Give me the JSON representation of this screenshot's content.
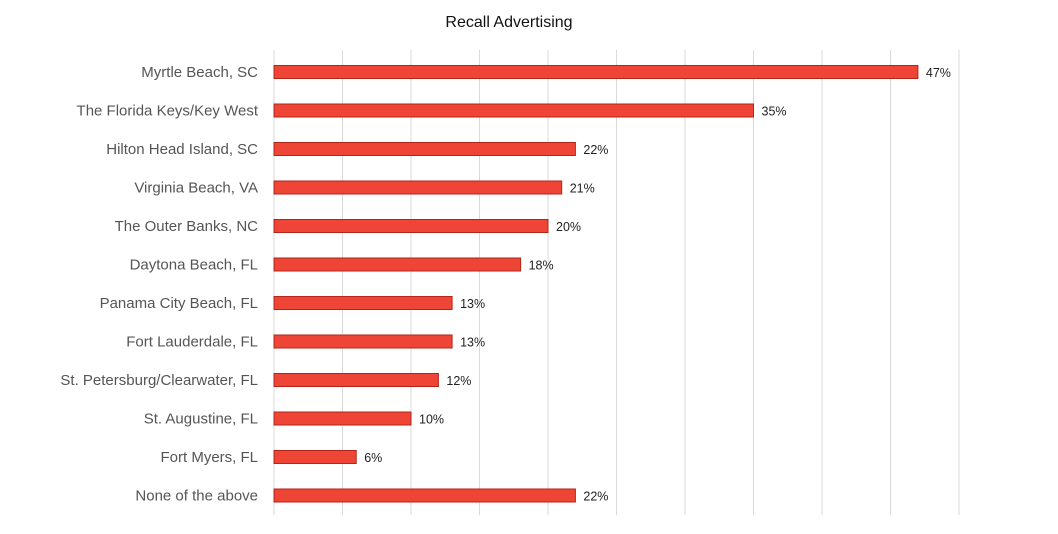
{
  "chart_data": {
    "type": "bar",
    "orientation": "horizontal",
    "title": "Recall Advertising",
    "categories": [
      "Myrtle Beach, SC",
      "The Florida Keys/Key West",
      "Hilton Head Island, SC",
      "Virginia Beach, VA",
      "The Outer Banks, NC",
      "Daytona Beach, FL",
      "Panama City Beach, FL",
      "Fort Lauderdale, FL",
      "St. Petersburg/Clearwater, FL",
      "St. Augustine, FL",
      "Fort Myers, FL",
      "None of the above"
    ],
    "values": [
      47,
      35,
      22,
      21,
      20,
      18,
      13,
      13,
      12,
      10,
      6,
      22
    ],
    "value_labels": [
      "47%",
      "35%",
      "22%",
      "21%",
      "20%",
      "18%",
      "13%",
      "13%",
      "12%",
      "10%",
      "6%",
      "22%"
    ],
    "xlim": [
      0,
      50
    ],
    "grid": "vertical",
    "colors": {
      "bar": "#ee4536",
      "bar_edge": "#b2261a",
      "grid": "#d9d9d9"
    }
  }
}
